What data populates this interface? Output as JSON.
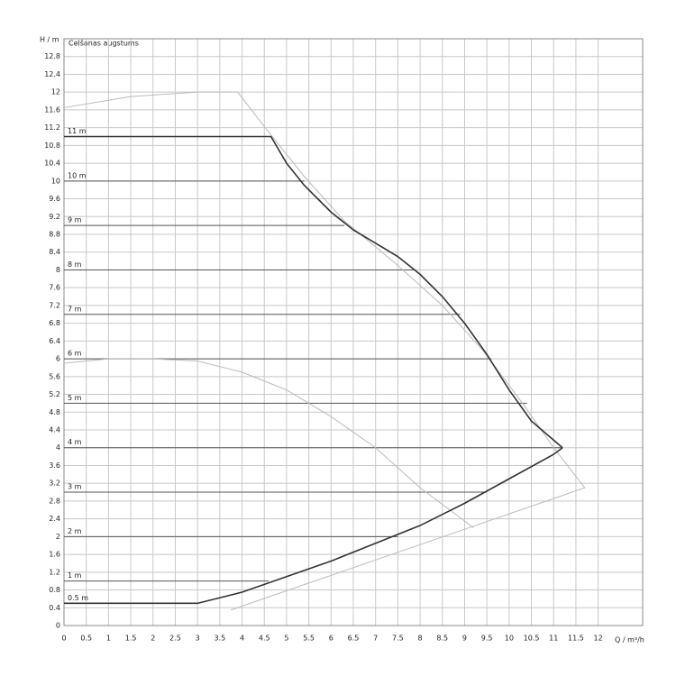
{
  "chart_data": {
    "type": "line",
    "title": "Celšanas augstums",
    "ylabel": "H / m",
    "xlabel": "Q / m³/h",
    "xlim": [
      0,
      13
    ],
    "ylim": [
      0,
      13.2
    ],
    "xticks": [
      0,
      0.5,
      1,
      1.5,
      2,
      2.5,
      3,
      3.5,
      4,
      4.5,
      5,
      5.5,
      6,
      6.5,
      7,
      7.5,
      8,
      8.5,
      9,
      9.5,
      10,
      10.5,
      11,
      11.5,
      12
    ],
    "yticks": [
      0,
      0.4,
      0.8,
      1.2,
      1.6,
      2,
      2.4,
      2.8,
      3.2,
      3.6,
      4,
      4.4,
      4.8,
      5.2,
      5.6,
      6,
      6.4,
      6.8,
      7.2,
      7.6,
      8,
      8.4,
      8.8,
      9.2,
      9.6,
      10,
      10.4,
      10.8,
      11.2,
      11.6,
      12,
      12.4,
      12.8
    ],
    "grid": true,
    "grid_color": "#c8c8c8",
    "series": [
      {
        "color": "#bbbbbb",
        "width": 1,
        "x": [
          0,
          1.5,
          3,
          3.9,
          4.6,
          5.4,
          6.3,
          7.5,
          8.5,
          9.4,
          10.3,
          11,
          11.7,
          3.75
        ],
        "values": [
          11.65,
          11.9,
          12.0,
          12.0,
          11.1,
          10.1,
          9.1,
          8.1,
          7.2,
          6.2,
          5.0,
          4.0,
          3.1,
          0.35
        ]
      },
      {
        "color": "#bbbbbb",
        "width": 1,
        "x": [
          0,
          1,
          2,
          3,
          4,
          5,
          6,
          7,
          8,
          9.2
        ],
        "values": [
          5.9,
          6.0,
          6.0,
          5.95,
          5.7,
          5.3,
          4.7,
          4.0,
          3.1,
          2.2
        ]
      },
      {
        "color": "#333333",
        "width": 1.6,
        "x": [
          0,
          4.65,
          5,
          5.4,
          6,
          6.5,
          7,
          7.5,
          8,
          8.5,
          9,
          9.5,
          10,
          10.5,
          11.2
        ],
        "values": [
          11,
          11,
          10.4,
          9.9,
          9.3,
          8.9,
          8.6,
          8.3,
          7.9,
          7.4,
          6.8,
          6.1,
          5.3,
          4.6,
          4.0
        ]
      },
      {
        "color": "#333333",
        "width": 1.6,
        "x": [
          0,
          3,
          4,
          5,
          6,
          7,
          8,
          9,
          10,
          11,
          11.2
        ],
        "values": [
          0.5,
          0.5,
          0.75,
          1.1,
          1.45,
          1.85,
          2.25,
          2.75,
          3.3,
          3.85,
          4.0
        ]
      }
    ],
    "levels": [
      {
        "label": "0.5 m",
        "value": 0.5,
        "xend": 3.0
      },
      {
        "label": "1 m",
        "value": 1,
        "xend": 4.6
      },
      {
        "label": "2 m",
        "value": 2,
        "xend": 7.5
      },
      {
        "label": "3 m",
        "value": 3,
        "xend": 9.5
      },
      {
        "label": "4 m",
        "value": 4,
        "xend": 11.2
      },
      {
        "label": "5 m",
        "value": 5,
        "xend": 10.4
      },
      {
        "label": "6 m",
        "value": 6,
        "xend": 9.6
      },
      {
        "label": "7 m",
        "value": 7,
        "xend": 8.9
      },
      {
        "label": "8 m",
        "value": 8,
        "xend": 7.9
      },
      {
        "label": "9 m",
        "value": 9,
        "xend": 6.3
      },
      {
        "label": "10 m",
        "value": 10,
        "xend": 5.4
      },
      {
        "label": "11 m",
        "value": 11,
        "xend": 4.65
      }
    ],
    "level_color": "#555555"
  }
}
